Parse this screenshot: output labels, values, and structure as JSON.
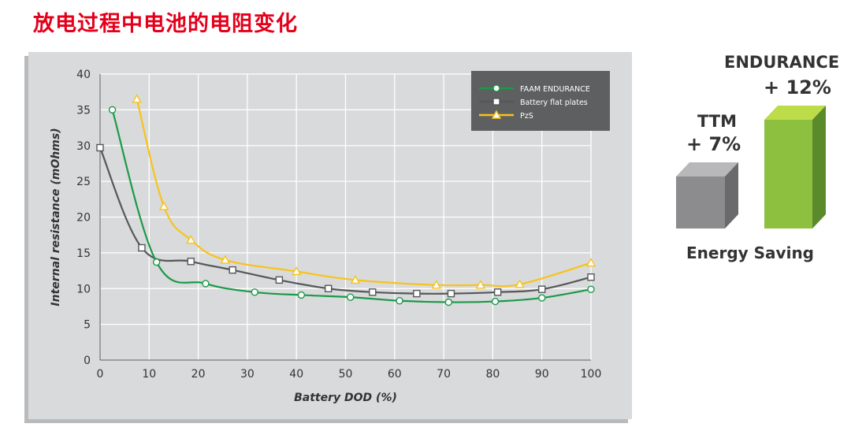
{
  "title": "放电过程中电池的电阻变化",
  "chart_data": {
    "type": "line",
    "xlabel": "Battery DOD (%)",
    "ylabel": "Internal resistance (mOhms)",
    "xlim": [
      0,
      100
    ],
    "ylim": [
      0,
      40
    ],
    "x_ticks": [
      0,
      10,
      20,
      30,
      40,
      50,
      60,
      70,
      80,
      90,
      100
    ],
    "y_ticks": [
      0,
      5,
      10,
      15,
      20,
      25,
      30,
      35,
      40
    ],
    "grid": true,
    "legend_position": "top-right",
    "series": [
      {
        "name": "FAAM ENDURANCE",
        "color": "#1a9a48",
        "marker": "circle",
        "points": [
          [
            2.5,
            35
          ],
          [
            11.5,
            13.7
          ],
          [
            21.5,
            10.7
          ],
          [
            31.5,
            9.5
          ],
          [
            41,
            9.1
          ],
          [
            51,
            8.8
          ],
          [
            61,
            8.3
          ],
          [
            71,
            8.1
          ],
          [
            80.5,
            8.2
          ],
          [
            90,
            8.7
          ],
          [
            100,
            9.9
          ]
        ]
      },
      {
        "name": "Battery flat plates",
        "color": "#555759",
        "marker": "square",
        "points": [
          [
            0,
            29.7
          ],
          [
            8.5,
            15.7
          ],
          [
            18.5,
            13.8
          ],
          [
            27,
            12.6
          ],
          [
            36.5,
            11.2
          ],
          [
            46.5,
            10
          ],
          [
            55.5,
            9.5
          ],
          [
            64.5,
            9.3
          ],
          [
            71.5,
            9.3
          ],
          [
            81,
            9.5
          ],
          [
            90,
            9.9
          ],
          [
            100,
            11.6
          ]
        ]
      },
      {
        "name": "PzS",
        "color": "#f7c31b",
        "marker": "triangle",
        "points": [
          [
            7.5,
            36.5
          ],
          [
            13,
            21.5
          ],
          [
            18.5,
            16.8
          ],
          [
            25.5,
            14
          ],
          [
            40,
            12.4
          ],
          [
            52,
            11.2
          ],
          [
            68.5,
            10.5
          ],
          [
            77.5,
            10.5
          ],
          [
            85.5,
            10.6
          ],
          [
            100,
            13.6
          ]
        ]
      }
    ]
  },
  "savings": {
    "caption": "Energy Saving",
    "bars": [
      {
        "label": "TTM",
        "value": "+ 7%",
        "front_color": "#8c8c8e",
        "top_color": "#b8b8ba",
        "side_color": "#6a6a6c"
      },
      {
        "label": "ENDURANCE",
        "value": "+ 12%",
        "front_color": "#8dc03f",
        "top_color": "#bcdc4a",
        "side_color": "#5a8a2a"
      }
    ]
  }
}
